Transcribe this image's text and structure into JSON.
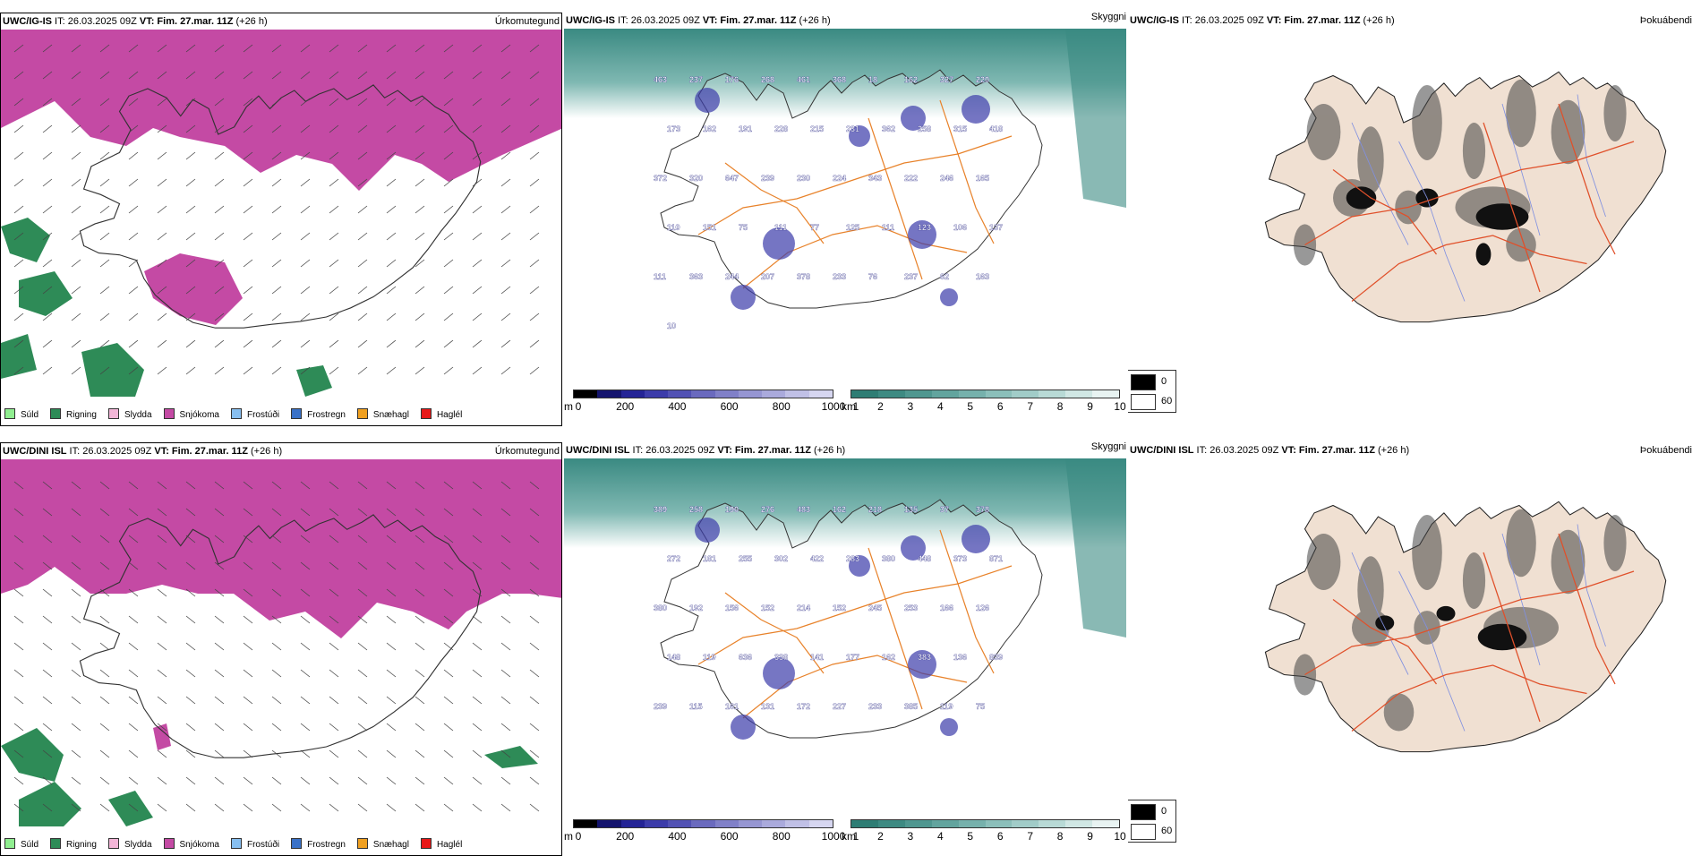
{
  "rows": [
    {
      "model": "UWC/IG-IS",
      "it": " IT: 26.03.2025 09Z ",
      "vt_label": "VT:",
      "vt_value": " Fim. 27.mar. 11Z",
      "lead": " (+26 h)",
      "panels": {
        "precip": "Úrkomutegund",
        "cloud": "Skyggni",
        "fog": "Þokuábendi"
      },
      "cloud_labels": [
        "463",
        "237",
        "176",
        "268",
        "461",
        "368",
        "18",
        "162",
        "327",
        "220",
        "173",
        "162",
        "191",
        "228",
        "215",
        "231",
        "362",
        "258",
        "315",
        "418",
        "372",
        "320",
        "647",
        "239",
        "230",
        "224",
        "343",
        "222",
        "246",
        "165",
        "110",
        "151",
        "75",
        "111",
        "77",
        "125",
        "111",
        "123",
        "106",
        "137",
        "111",
        "363",
        "244",
        "207",
        "378",
        "233",
        "76",
        "237",
        "62",
        "163",
        "10"
      ]
    },
    {
      "model": "UWC/DINI ISL",
      "it": " IT: 26.03.2025 09Z ",
      "vt_label": "VT:",
      "vt_value": " Fim. 27.mar. 11Z",
      "lead": " (+26 h)",
      "panels": {
        "precip": "Úrkomutegund",
        "cloud": "Skyggni",
        "fog": "Þokuábendi"
      },
      "cloud_labels": [
        "389",
        "258",
        "190",
        "276",
        "483",
        "162",
        "218",
        "135",
        "37",
        "378",
        "272",
        "181",
        "255",
        "302",
        "422",
        "283",
        "380",
        "448",
        "373",
        "871",
        "380",
        "192",
        "156",
        "152",
        "214",
        "152",
        "245",
        "253",
        "166",
        "126",
        "148",
        "119",
        "636",
        "338",
        "141",
        "177",
        "162",
        "383",
        "136",
        "839",
        "239",
        "115",
        "161",
        "131",
        "172",
        "227",
        "233",
        "385",
        "119",
        "75"
      ]
    }
  ],
  "precip_legend": [
    {
      "label": "Súld",
      "color": "#90ee90"
    },
    {
      "label": "Rigning",
      "color": "#2e8b57"
    },
    {
      "label": "Slydda",
      "color": "#f4b6d8"
    },
    {
      "label": "Snjókoma",
      "color": "#c44aa4"
    },
    {
      "label": "Frostúði",
      "color": "#87bff0"
    },
    {
      "label": "Frostregn",
      "color": "#3a72c8"
    },
    {
      "label": "Snæhagl",
      "color": "#f0a020"
    },
    {
      "label": "Haglél",
      "color": "#e81818"
    }
  ],
  "cloudbase_bar": {
    "unit": "m",
    "ticks": [
      "0",
      "200",
      "400",
      "600",
      "800",
      "1000"
    ],
    "colors": [
      "#000000",
      "#14146e",
      "#242496",
      "#3c3caa",
      "#5252b4",
      "#6a6abe",
      "#8080c8",
      "#9696d2",
      "#aaaadc",
      "#c0c0e6",
      "#d6d6f0"
    ]
  },
  "visibility_bar": {
    "unit": "km",
    "ticks": [
      "1",
      "2",
      "3",
      "4",
      "5",
      "6",
      "7",
      "8",
      "9",
      "10"
    ],
    "colors": [
      "#2e7d74",
      "#3d8a82",
      "#4f9790",
      "#62a49e",
      "#76b1ac",
      "#8bbfba",
      "#a1ccc8",
      "#b8dad6",
      "#d0e7e4",
      "#e8f3f2"
    ]
  },
  "fog_legend": [
    {
      "label": "0",
      "color": "#000000"
    },
    {
      "label": "60",
      "color": "#ffffff"
    }
  ]
}
